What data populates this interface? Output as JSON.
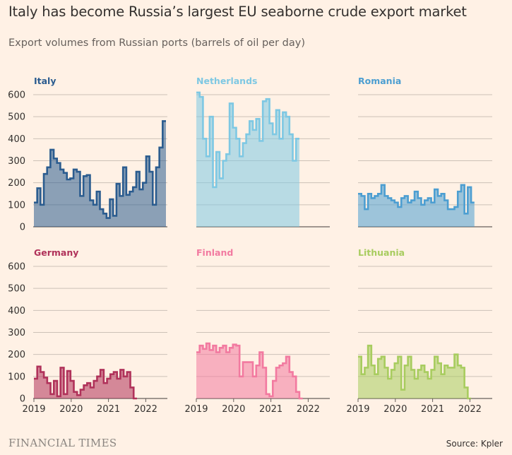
{
  "title": "Italy has become Russia’s largest EU seaborne crude export market",
  "subtitle": "Export volumes from Russian ports (barrels of oil per day)",
  "footer": {
    "logo": "FINANCIAL TIMES",
    "source": "Source: Kpler"
  },
  "chart_data": {
    "type": "area",
    "ylim": [
      0,
      600
    ],
    "yticks": [
      0,
      100,
      200,
      300,
      400,
      500,
      600
    ],
    "xticks": [
      "2019",
      "2020",
      "2021",
      "2022"
    ],
    "x_start": "2019-01",
    "x_end": "2022-05",
    "grid": true,
    "panels": [
      {
        "name": "Italy",
        "color": "#2b5c8f",
        "values": [
          110,
          175,
          100,
          240,
          270,
          350,
          310,
          290,
          260,
          245,
          215,
          220,
          260,
          250,
          140,
          230,
          235,
          120,
          100,
          160,
          80,
          60,
          40,
          125,
          50,
          195,
          140,
          270,
          145,
          160,
          180,
          250,
          170,
          200,
          320,
          250,
          100,
          270,
          360,
          480
        ]
      },
      {
        "name": "Netherlands",
        "color": "#7ec8e3",
        "values": [
          610,
          590,
          400,
          320,
          500,
          180,
          340,
          220,
          300,
          330,
          560,
          450,
          400,
          320,
          380,
          420,
          480,
          440,
          490,
          390,
          570,
          580,
          470,
          420,
          530,
          400,
          520,
          500,
          420,
          300,
          400
        ]
      },
      {
        "name": "Romania",
        "color": "#4c9ed1",
        "values": [
          150,
          140,
          80,
          150,
          130,
          140,
          150,
          190,
          140,
          130,
          120,
          110,
          90,
          130,
          140,
          110,
          120,
          160,
          130,
          100,
          120,
          130,
          110,
          170,
          140,
          150,
          120,
          80,
          80,
          90,
          160,
          190,
          60,
          180,
          110
        ]
      },
      {
        "name": "Germany",
        "color": "#b0325a",
        "values": [
          90,
          145,
          120,
          95,
          70,
          20,
          80,
          10,
          140,
          20,
          125,
          80,
          30,
          15,
          40,
          60,
          70,
          50,
          80,
          100,
          130,
          70,
          90,
          110,
          120,
          90,
          130,
          100,
          120,
          50,
          0
        ]
      },
      {
        "name": "Finland",
        "color": "#f27aa0",
        "values": [
          210,
          240,
          225,
          250,
          220,
          240,
          210,
          230,
          240,
          210,
          230,
          245,
          240,
          100,
          165,
          165,
          165,
          100,
          150,
          210,
          140,
          20,
          10,
          80,
          140,
          150,
          160,
          190,
          120,
          100,
          30,
          0
        ]
      },
      {
        "name": "Lithuania",
        "color": "#a8cc5f",
        "values": [
          190,
          110,
          140,
          240,
          150,
          110,
          180,
          190,
          140,
          90,
          130,
          160,
          190,
          40,
          150,
          190,
          130,
          90,
          130,
          150,
          120,
          90,
          130,
          190,
          160,
          110,
          150,
          140,
          140,
          200,
          150,
          140,
          50,
          0
        ]
      }
    ]
  }
}
